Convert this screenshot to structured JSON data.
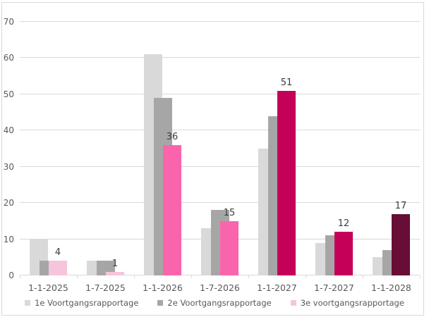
{
  "chart_data": {
    "type": "bar",
    "title": "",
    "xlabel": "",
    "ylabel": "",
    "categories": [
      "1-1-2025",
      "1-7-2025",
      "1-1-2026",
      "1-7-2026",
      "1-1-2027",
      "1-7-2027",
      "1-1-2028"
    ],
    "series": [
      {
        "name": "1e Voortgangsrapportage",
        "color": "#D9D9D9",
        "values": [
          10,
          4,
          61,
          13,
          35,
          9,
          5
        ],
        "show_data_labels": false
      },
      {
        "name": "2e Voortgangsrapportage",
        "color": "#A6A6A6",
        "values": [
          4,
          4,
          49,
          18,
          44,
          11,
          7
        ],
        "show_data_labels": false
      },
      {
        "name": "3e voortgangsrapportage",
        "color": "#F7C5DB",
        "bar_colors": [
          "#F7C5DB",
          "#F7C5DB",
          "#FA64AC",
          "#FA64AC",
          "#C40059",
          "#C40059",
          "#680D35"
        ],
        "values": [
          4,
          1,
          36,
          15,
          51,
          12,
          17
        ],
        "show_data_labels": true,
        "data_labels": [
          "4",
          "1",
          "36",
          "15",
          "51",
          "12",
          "17"
        ]
      }
    ],
    "yticks": [
      0,
      10,
      20,
      30,
      40,
      50,
      60,
      70
    ],
    "ylim": [
      0,
      70
    ],
    "grid": true,
    "legend_position": "bottom",
    "colors": {
      "gridline": "#D9D9D9",
      "frame_border": "#D9D9D9",
      "axis_text": "#595959",
      "data_label_text": "#3B3B3B",
      "background": "#FFFFFF"
    }
  }
}
